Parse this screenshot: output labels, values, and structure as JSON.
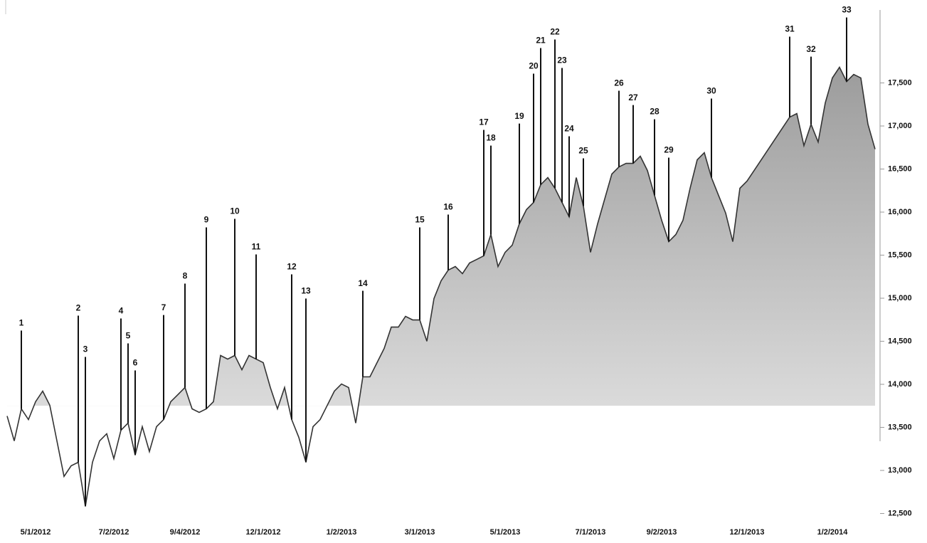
{
  "chart_data": {
    "type": "line",
    "categories": [
      null,
      null,
      null,
      null,
      "5/1/2012",
      null,
      null,
      null,
      null,
      null,
      null,
      null,
      null,
      null,
      null,
      "7/2/2012",
      null,
      null,
      null,
      null,
      null,
      null,
      null,
      null,
      null,
      "9/4/2012",
      null,
      null,
      null,
      null,
      null,
      null,
      null,
      null,
      null,
      null,
      "12/1/2012",
      null,
      null,
      null,
      null,
      null,
      null,
      null,
      null,
      null,
      null,
      "1/2/2013",
      null,
      null,
      null,
      null,
      null,
      null,
      null,
      null,
      null,
      null,
      "3/1/2013",
      null,
      null,
      null,
      null,
      null,
      null,
      null,
      null,
      null,
      null,
      null,
      "5/1/2013",
      null,
      null,
      null,
      null,
      null,
      null,
      null,
      null,
      null,
      null,
      null,
      "7/1/2013",
      null,
      null,
      null,
      null,
      null,
      null,
      null,
      null,
      null,
      "9/2/2013",
      null,
      null,
      null,
      null,
      null,
      null,
      null,
      null,
      null,
      null,
      null,
      "12/1/2013",
      null,
      null,
      null,
      null,
      null,
      null,
      null,
      null,
      null,
      null,
      null,
      "1/2/2014",
      null,
      null,
      null,
      null,
      null,
      null
    ],
    "series": [
      {
        "color": "#333333",
        "values": [
          13632,
          13343,
          13715,
          13591,
          13798,
          13921,
          13756,
          13343,
          12930,
          13054,
          13095,
          12583,
          13095,
          13343,
          13426,
          13136,
          13467,
          13550,
          13178,
          13508,
          13219,
          13508,
          13591,
          13798,
          13880,
          13963,
          13715,
          13674,
          13715,
          13798,
          14335,
          14293,
          14335,
          14169,
          14335,
          14293,
          14252,
          13963,
          13715,
          13963,
          13591,
          13384,
          13095,
          13508,
          13591,
          13756,
          13921,
          14004,
          13963,
          13550,
          14087,
          14087,
          14252,
          14417,
          14665,
          14665,
          14789,
          14748,
          14748,
          14500,
          14996,
          15202,
          15326,
          15368,
          15285,
          15409,
          15450,
          15492,
          15740,
          15368,
          15533,
          15616,
          15864,
          16029,
          16112,
          16318,
          16401,
          16277,
          16112,
          15946,
          16401,
          16070,
          15533,
          15864,
          16153,
          16442,
          16525,
          16566,
          16566,
          16649,
          16483,
          16194,
          15905,
          15657,
          15740,
          15905,
          16277,
          16607,
          16690,
          16401,
          16194,
          15988,
          15657,
          16277,
          16360,
          16483,
          16607,
          16731,
          16855,
          16979,
          17103,
          17144,
          16772,
          17020,
          16814,
          17268,
          17558,
          17682,
          17516,
          17599,
          17558,
          17020,
          16731
        ]
      }
    ],
    "area_baseline": 13750,
    "ylim": [
      12430,
      18430
    ],
    "yticks": [
      {
        "value": 12500,
        "label": "12,500"
      },
      {
        "value": 13000,
        "label": "13,000"
      },
      {
        "value": 13500,
        "label": "13,500"
      },
      {
        "value": 14000,
        "label": "14,000"
      },
      {
        "value": 14500,
        "label": "14,500"
      },
      {
        "value": 15000,
        "label": "15,000"
      },
      {
        "value": 15500,
        "label": "15,500"
      },
      {
        "value": 16000,
        "label": "16,000"
      },
      {
        "value": 16500,
        "label": "16,500"
      },
      {
        "value": 17000,
        "label": "17,000"
      },
      {
        "value": 17500,
        "label": "17,500"
      }
    ],
    "annotations": [
      {
        "text": "1",
        "x": 2,
        "y": 14707
      },
      {
        "text": "2",
        "x": 10,
        "y": 14880
      },
      {
        "text": "3",
        "x": 11,
        "y": 14401
      },
      {
        "text": "4",
        "x": 16,
        "y": 14847
      },
      {
        "text": "5",
        "x": 17,
        "y": 14558
      },
      {
        "text": "6",
        "x": 18,
        "y": 14244
      },
      {
        "text": "7",
        "x": 22,
        "y": 14888
      },
      {
        "text": "8",
        "x": 25,
        "y": 15252
      },
      {
        "text": "9",
        "x": 28,
        "y": 15905
      },
      {
        "text": "10",
        "x": 32,
        "y": 16004
      },
      {
        "text": "11",
        "x": 35,
        "y": 15591
      },
      {
        "text": "12",
        "x": 40,
        "y": 15360
      },
      {
        "text": "13",
        "x": 42,
        "y": 15079
      },
      {
        "text": "14",
        "x": 50,
        "y": 15169
      },
      {
        "text": "15",
        "x": 58,
        "y": 15905
      },
      {
        "text": "16",
        "x": 62,
        "y": 16054
      },
      {
        "text": "17",
        "x": 67,
        "y": 17037
      },
      {
        "text": "18",
        "x": 68,
        "y": 16855
      },
      {
        "text": "19",
        "x": 72,
        "y": 17111
      },
      {
        "text": "20",
        "x": 74,
        "y": 17690
      },
      {
        "text": "21",
        "x": 75,
        "y": 17988
      },
      {
        "text": "22",
        "x": 77,
        "y": 18087
      },
      {
        "text": "23",
        "x": 78,
        "y": 17756
      },
      {
        "text": "24",
        "x": 79,
        "y": 16963
      },
      {
        "text": "25",
        "x": 81,
        "y": 16707
      },
      {
        "text": "26",
        "x": 86,
        "y": 17492
      },
      {
        "text": "27",
        "x": 88,
        "y": 17326
      },
      {
        "text": "28",
        "x": 91,
        "y": 17161
      },
      {
        "text": "29",
        "x": 93,
        "y": 16715
      },
      {
        "text": "30",
        "x": 99,
        "y": 17401
      },
      {
        "text": "31",
        "x": 110,
        "y": 18120
      },
      {
        "text": "32",
        "x": 113,
        "y": 17888
      },
      {
        "text": "33",
        "x": 118,
        "y": 18343
      }
    ]
  }
}
